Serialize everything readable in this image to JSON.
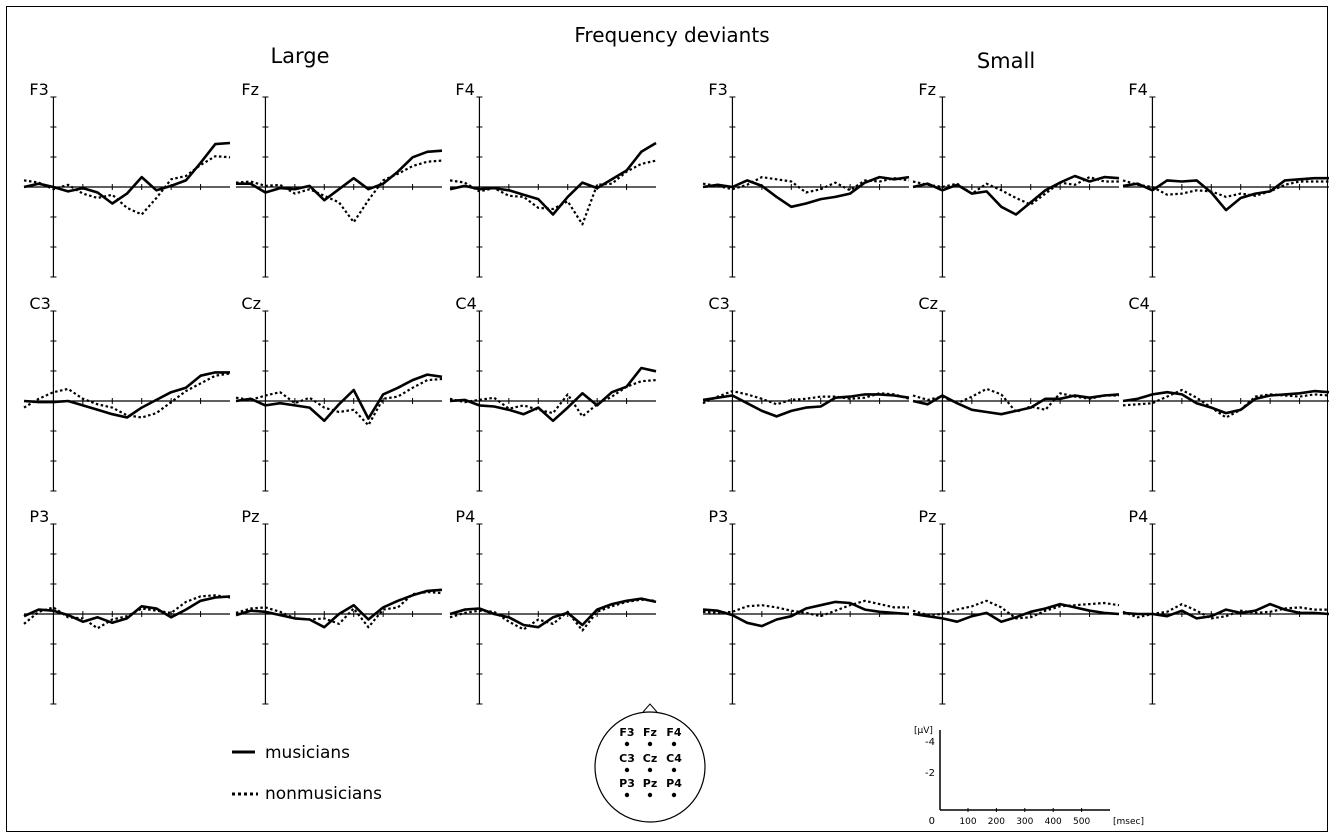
{
  "title": "Frequency deviants",
  "groups": [
    {
      "label": "Large"
    },
    {
      "label": "Small"
    }
  ],
  "legend": {
    "musicians": "musicians",
    "nonmusicians": "nonmusicians"
  },
  "head_map": {
    "rows": [
      [
        "F3",
        "Fz",
        "F4"
      ],
      [
        "C3",
        "Cz",
        "C4"
      ],
      [
        "P3",
        "Pz",
        "P4"
      ]
    ]
  },
  "scale": {
    "y_unit": "[µV]",
    "y_ticks": [
      "-4",
      "-2",
      "0"
    ],
    "x_ticks": [
      "100",
      "200",
      "300",
      "400",
      "500"
    ],
    "x_unit": "[msec]"
  },
  "chart_data": {
    "type": "line",
    "title": "Frequency deviants",
    "xlabel": "[msec]",
    "ylabel": "[µV]",
    "xlim": [
      -100,
      600
    ],
    "ylim": [
      -6,
      6
    ],
    "y_inverted": true,
    "grid": false,
    "series_names": [
      "musicians",
      "nonmusicians"
    ],
    "x": [
      -100,
      -50,
      0,
      50,
      100,
      150,
      200,
      250,
      300,
      350,
      400,
      450,
      500,
      550,
      600
    ],
    "panels": [
      {
        "group": "Large",
        "electrode": "F3",
        "musicians": [
          0,
          0.3,
          0,
          -0.4,
          -0.1,
          -0.5,
          -1.5,
          -0.6,
          0.9,
          -0.3,
          0.1,
          0.6,
          2.2,
          3.9,
          4.0
        ],
        "nonmusicians": [
          0.6,
          0.4,
          -0.2,
          0.2,
          -0.6,
          -1.0,
          -0.7,
          -1.9,
          -2.5,
          -1.0,
          0.7,
          1.0,
          2.0,
          2.8,
          2.7
        ]
      },
      {
        "group": "Large",
        "electrode": "Fz",
        "musicians": [
          0.3,
          0.3,
          -0.5,
          -0.1,
          -0.2,
          0.1,
          -1.2,
          -0.2,
          0.8,
          -0.2,
          0.3,
          1.4,
          2.7,
          3.2,
          3.3
        ],
        "nonmusicians": [
          0.4,
          0.5,
          0.1,
          0.2,
          -0.6,
          -0.2,
          -0.8,
          -1.4,
          -3.2,
          -1.2,
          0.6,
          1.2,
          1.9,
          2.3,
          2.4
        ]
      },
      {
        "group": "Large",
        "electrode": "F4",
        "musicians": [
          -0.2,
          0.1,
          -0.2,
          -0.1,
          -0.3,
          -0.7,
          -1.1,
          -2.5,
          -0.9,
          0.4,
          -0.1,
          0.7,
          1.5,
          3.2,
          4.0
        ],
        "nonmusicians": [
          0.6,
          0.4,
          -0.4,
          -0.1,
          -0.8,
          -0.9,
          -1.9,
          -2.0,
          -1.3,
          -3.4,
          0.2,
          0.3,
          1.4,
          2.1,
          2.4
        ]
      },
      {
        "group": "Large",
        "electrode": "C3",
        "musicians": [
          0,
          -0.1,
          -0.1,
          0,
          -0.4,
          -0.8,
          -1.2,
          -1.5,
          -0.6,
          0.1,
          0.8,
          1.2,
          2.3,
          2.6,
          2.6
        ],
        "nonmusicians": [
          -0.6,
          0.2,
          0.8,
          1.1,
          0.2,
          -0.3,
          -0.6,
          -1.3,
          -1.5,
          -1.1,
          -0.1,
          0.9,
          1.6,
          2.3,
          2.5
        ]
      },
      {
        "group": "Large",
        "electrode": "Cz",
        "musicians": [
          0,
          0.2,
          -0.4,
          -0.2,
          -0.4,
          -0.6,
          -1.8,
          -0.3,
          1.0,
          -1.6,
          0.6,
          1.2,
          1.9,
          2.4,
          2.2
        ],
        "nonmusicians": [
          0.3,
          0.1,
          0.5,
          0.8,
          -0.2,
          0.3,
          -0.6,
          -1.0,
          -0.8,
          -2.2,
          0.2,
          0.4,
          1.2,
          1.9,
          2.0
        ]
      },
      {
        "group": "Large",
        "electrode": "C4",
        "musicians": [
          0,
          0.1,
          -0.4,
          -0.5,
          -0.8,
          -1.2,
          -0.6,
          -1.8,
          -0.6,
          0.7,
          -0.4,
          0.8,
          1.3,
          3.0,
          2.7
        ],
        "nonmusicians": [
          0.2,
          -0.1,
          0.1,
          0.3,
          -0.7,
          -0.4,
          -0.8,
          -1.1,
          0.6,
          -1.4,
          -0.3,
          0.4,
          1.3,
          1.8,
          1.9
        ]
      },
      {
        "group": "Large",
        "electrode": "P3",
        "musicians": [
          -0.2,
          0.4,
          0.3,
          -0.1,
          -0.7,
          -0.3,
          -0.8,
          -0.4,
          0.7,
          0.5,
          -0.3,
          0.4,
          1.2,
          1.5,
          1.6
        ],
        "nonmusicians": [
          -0.9,
          0.2,
          0.6,
          -0.3,
          -0.4,
          -1.3,
          -0.5,
          -0.2,
          0.5,
          0.3,
          0.1,
          1.1,
          1.6,
          1.7,
          1.5
        ]
      },
      {
        "group": "Large",
        "electrode": "Pz",
        "musicians": [
          -0.1,
          0.3,
          0.2,
          -0.1,
          -0.4,
          -0.5,
          -1.2,
          0.0,
          0.8,
          -0.5,
          0.6,
          1.2,
          1.7,
          2.1,
          2.2
        ],
        "nonmusicians": [
          0.1,
          0.5,
          0.6,
          0.2,
          -0.4,
          -0.5,
          -0.4,
          -0.9,
          0.5,
          -1.2,
          0.4,
          0.6,
          1.8,
          2.0,
          1.9
        ]
      },
      {
        "group": "Large",
        "electrode": "P4",
        "musicians": [
          0,
          0.4,
          0.5,
          0.0,
          -0.3,
          -1.0,
          -1.2,
          -0.3,
          0.1,
          -1.0,
          0.4,
          0.9,
          1.2,
          1.4,
          1.1
        ],
        "nonmusicians": [
          -0.3,
          0.1,
          0.3,
          0.2,
          -0.7,
          -1.4,
          -0.5,
          -0.9,
          0.2,
          -1.5,
          0.2,
          0.7,
          1.1,
          1.3,
          1.2
        ]
      },
      {
        "group": "Small",
        "electrode": "F3",
        "musicians": [
          0,
          0.2,
          0,
          0.6,
          0.1,
          -0.9,
          -1.8,
          -1.5,
          -1.1,
          -0.9,
          -0.6,
          0.4,
          0.9,
          0.7,
          0.9
        ],
        "nonmusicians": [
          0.3,
          0.1,
          -0.2,
          0.2,
          0.9,
          0.7,
          0.5,
          -0.5,
          -0.2,
          0.4,
          -0.3,
          0.6,
          0.5,
          0.8,
          0.6
        ]
      },
      {
        "group": "Small",
        "electrode": "Fz",
        "musicians": [
          0,
          0.3,
          -0.3,
          0.2,
          -0.6,
          -0.4,
          -1.8,
          -2.5,
          -1.4,
          -0.3,
          0.4,
          1.0,
          0.5,
          0.9,
          0.8
        ],
        "nonmusicians": [
          0.5,
          0.2,
          0.0,
          0.3,
          -0.6,
          0.3,
          -0.3,
          -1.0,
          -1.6,
          -0.6,
          0.4,
          0.2,
          0.9,
          0.5,
          0.5
        ]
      },
      {
        "group": "Small",
        "electrode": "F4",
        "musicians": [
          0.1,
          0.3,
          -0.3,
          0.6,
          0.5,
          0.6,
          -0.5,
          -2.1,
          -1.0,
          -0.6,
          -0.4,
          0.6,
          0.7,
          0.8,
          0.8
        ],
        "nonmusicians": [
          0.6,
          0.2,
          0.0,
          -0.7,
          -0.6,
          -0.3,
          -0.4,
          -0.9,
          -0.6,
          -0.8,
          -0.4,
          0.2,
          0.5,
          0.5,
          0.5
        ]
      },
      {
        "group": "Small",
        "electrode": "C3",
        "musicians": [
          0.1,
          0.3,
          0.5,
          -0.2,
          -0.9,
          -1.4,
          -0.9,
          -0.6,
          -0.5,
          0.3,
          0.4,
          0.6,
          0.6,
          0.5,
          0.3
        ],
        "nonmusicians": [
          -0.2,
          0.4,
          0.9,
          0.6,
          0.2,
          -0.3,
          0.1,
          0.2,
          0.4,
          0.4,
          0.2,
          0.3,
          0.7,
          0.6,
          0.2
        ]
      },
      {
        "group": "Small",
        "electrode": "Cz",
        "musicians": [
          0,
          -0.3,
          0.5,
          -0.2,
          -0.8,
          -1.0,
          -1.2,
          -0.9,
          -0.6,
          0.2,
          0.2,
          0.5,
          0.3,
          0.5,
          0.6
        ],
        "nonmusicians": [
          0.5,
          0.1,
          0.4,
          -0.2,
          0.4,
          1.1,
          0.6,
          -1.0,
          -0.5,
          -0.8,
          0.7,
          0.4,
          0.2,
          0.5,
          0.5
        ]
      },
      {
        "group": "Small",
        "electrode": "C4",
        "musicians": [
          0,
          0.2,
          0.6,
          0.8,
          0.6,
          -0.2,
          -0.6,
          -1.1,
          -0.8,
          0.2,
          0.5,
          0.6,
          0.7,
          0.9,
          0.8
        ],
        "nonmusicians": [
          -0.4,
          -0.3,
          -0.2,
          0.4,
          1.0,
          0.3,
          -0.6,
          -1.5,
          -0.8,
          0.4,
          0.6,
          0.5,
          0.4,
          0.6,
          0.5
        ]
      },
      {
        "group": "Small",
        "electrode": "P3",
        "musicians": [
          0.4,
          0.3,
          -0.1,
          -0.8,
          -1.1,
          -0.5,
          -0.2,
          0.5,
          0.8,
          1.1,
          1.0,
          0.4,
          0.2,
          0.1,
          0.0
        ],
        "nonmusicians": [
          0.2,
          0.1,
          0.2,
          0.7,
          0.8,
          0.6,
          0.3,
          0.1,
          -0.2,
          0.3,
          0.8,
          1.2,
          0.9,
          0.6,
          0.6
        ]
      },
      {
        "group": "Small",
        "electrode": "Pz",
        "musicians": [
          0.0,
          -0.2,
          -0.4,
          -0.7,
          -0.2,
          0.1,
          -0.7,
          -0.3,
          0.2,
          0.5,
          0.9,
          0.6,
          0.3,
          0.1,
          0.0
        ],
        "nonmusicians": [
          0.3,
          -0.1,
          0.0,
          0.4,
          0.7,
          1.2,
          0.6,
          -0.4,
          -0.3,
          0.3,
          0.7,
          0.8,
          0.9,
          1.0,
          0.8
        ]
      },
      {
        "group": "Small",
        "electrode": "P4",
        "musicians": [
          0.1,
          0.0,
          0.0,
          -0.2,
          0.3,
          -0.4,
          -0.2,
          0.4,
          0.1,
          0.3,
          0.9,
          0.4,
          0.1,
          0.1,
          0.0
        ],
        "nonmusicians": [
          0.2,
          -0.3,
          0.0,
          0.2,
          0.9,
          0.3,
          -0.4,
          -0.2,
          0.3,
          0.1,
          0.2,
          0.5,
          0.6,
          0.4,
          0.4
        ]
      }
    ]
  }
}
